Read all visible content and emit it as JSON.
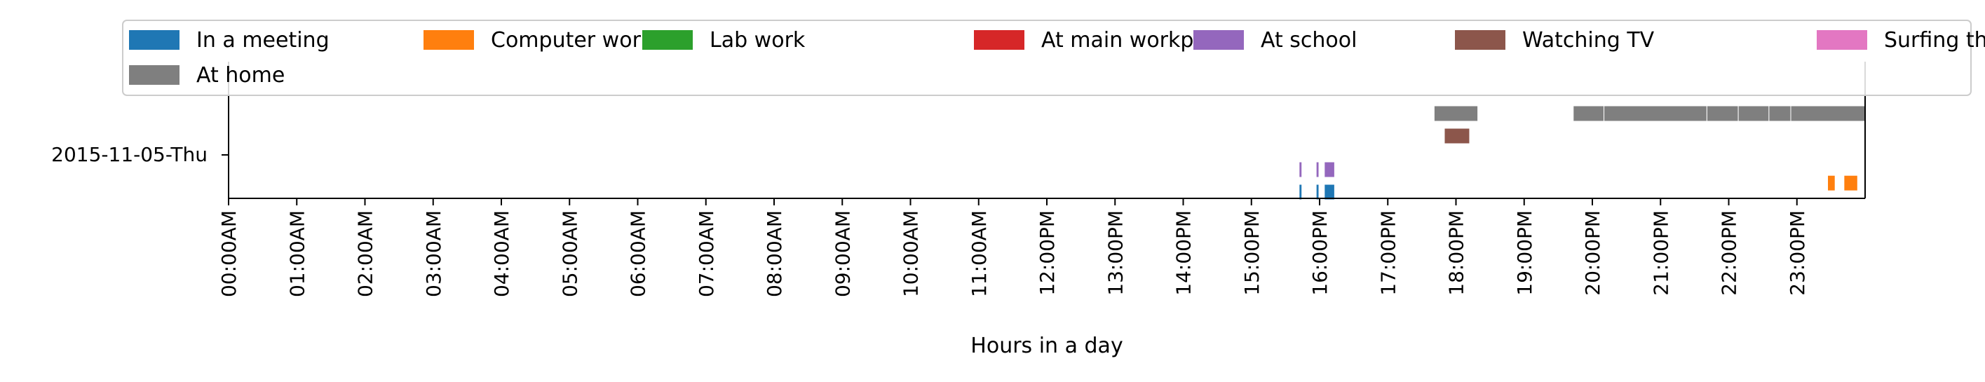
{
  "chart_data": {
    "type": "timeline",
    "xlabel": "Hours in a day",
    "xticks": [
      "00:00AM",
      "01:00AM",
      "02:00AM",
      "03:00AM",
      "04:00AM",
      "05:00AM",
      "06:00AM",
      "07:00AM",
      "08:00AM",
      "09:00AM",
      "10:00AM",
      "11:00AM",
      "12:00PM",
      "13:00PM",
      "14:00PM",
      "15:00PM",
      "16:00PM",
      "17:00PM",
      "18:00PM",
      "19:00PM",
      "20:00PM",
      "21:00PM",
      "22:00PM",
      "23:00PM"
    ],
    "xlim": [
      0,
      24
    ],
    "day_label": "2015-11-05-Thu",
    "legend_position": "top",
    "series": [
      {
        "name": "In a meeting",
        "color": "#1f77b4",
        "level": 0,
        "intervals": [
          [
            15.7,
            15.74
          ],
          [
            15.95,
            15.99
          ],
          [
            16.07,
            16.22
          ]
        ]
      },
      {
        "name": "Computer work",
        "color": "#ff7f0e",
        "level": 0.4,
        "intervals": [
          [
            23.45,
            23.56
          ],
          [
            23.69,
            23.89
          ]
        ]
      },
      {
        "name": "Lab work",
        "color": "#2ca02c",
        "level": 1,
        "intervals": []
      },
      {
        "name": "At main workplace",
        "color": "#d62728",
        "level": 1,
        "intervals": []
      },
      {
        "name": "At school",
        "color": "#9467bd",
        "level": 1,
        "intervals": [
          [
            15.7,
            15.74
          ],
          [
            15.95,
            15.99
          ],
          [
            16.07,
            16.22
          ]
        ]
      },
      {
        "name": "Watching TV",
        "color": "#8c564b",
        "level": 2.5,
        "intervals": [
          [
            17.83,
            18.2
          ]
        ]
      },
      {
        "name": "Surfing the internet",
        "color": "#e377c2",
        "level": 3,
        "intervals": []
      },
      {
        "name": "At home",
        "color": "#7f7f7f",
        "level": 3.5,
        "intervals": [
          [
            17.68,
            18.32
          ],
          [
            19.72,
            20.17
          ],
          [
            20.17,
            21.68
          ],
          [
            21.68,
            22.14
          ],
          [
            22.14,
            22.59
          ],
          [
            22.59,
            22.91
          ],
          [
            22.91,
            24.0
          ]
        ]
      }
    ]
  }
}
